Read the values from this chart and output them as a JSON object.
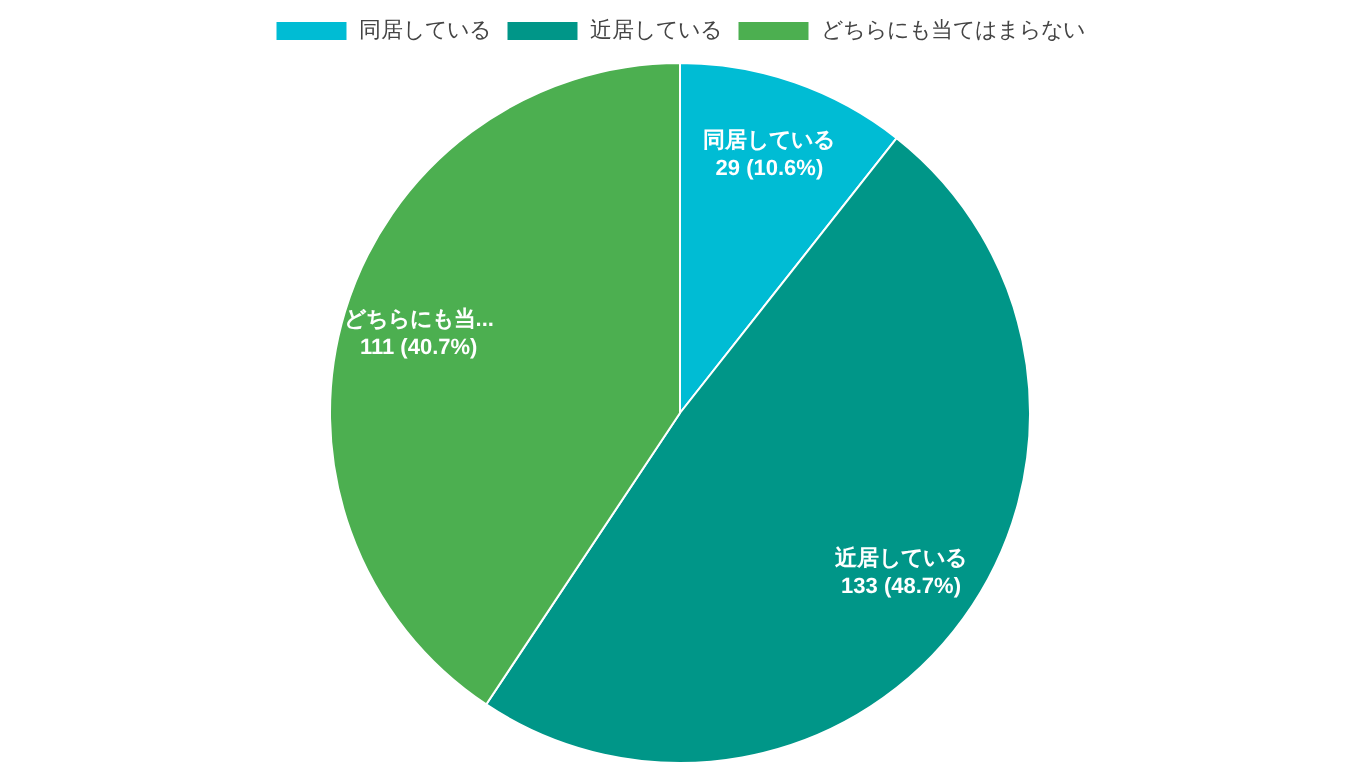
{
  "chart_data": {
    "type": "pie",
    "categories": [
      "同居している",
      "近居している",
      "どちらにも当てはまらない"
    ],
    "values": [
      29,
      133,
      111
    ],
    "colors": [
      "#00bcd4",
      "#009688",
      "#4caf50"
    ],
    "value_labels": [
      "同居している\n29 (10.6%)",
      "近居している\n133 (48.7%)",
      "どちらにも当...\n111 (40.7%)"
    ],
    "legend": "top"
  }
}
